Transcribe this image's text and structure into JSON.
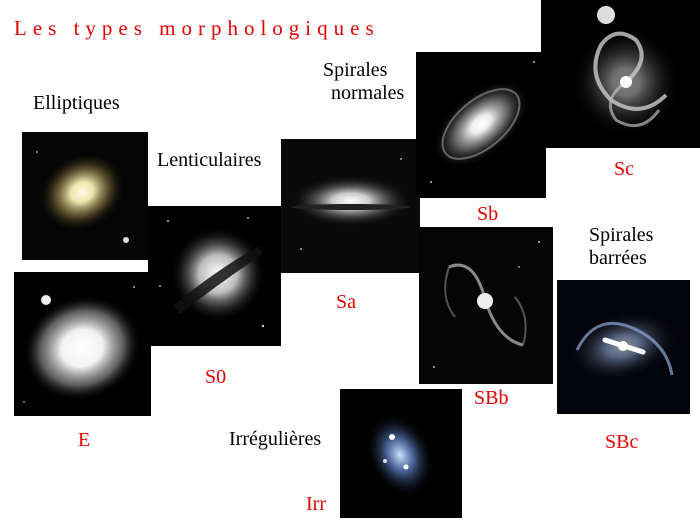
{
  "title": "Les types morphologiques",
  "categories": {
    "elliptiques": "Elliptiques",
    "lenticulaires": "Lenticulaires",
    "spirales_normales_1": "Spirales",
    "spirales_normales_2": "normales",
    "spirales_barrees_1": "Spirales",
    "spirales_barrees_2": "barrées",
    "irregulieres": "Irrégulières"
  },
  "labels": {
    "E": "E",
    "S0": "S0",
    "Sa": "Sa",
    "Sb": "Sb",
    "Sc": "Sc",
    "SBb": "SBb",
    "SBc": "SBc",
    "Irr": "Irr"
  },
  "colors": {
    "label": "#e00000",
    "text": "#000000",
    "background": "#ffffff"
  }
}
